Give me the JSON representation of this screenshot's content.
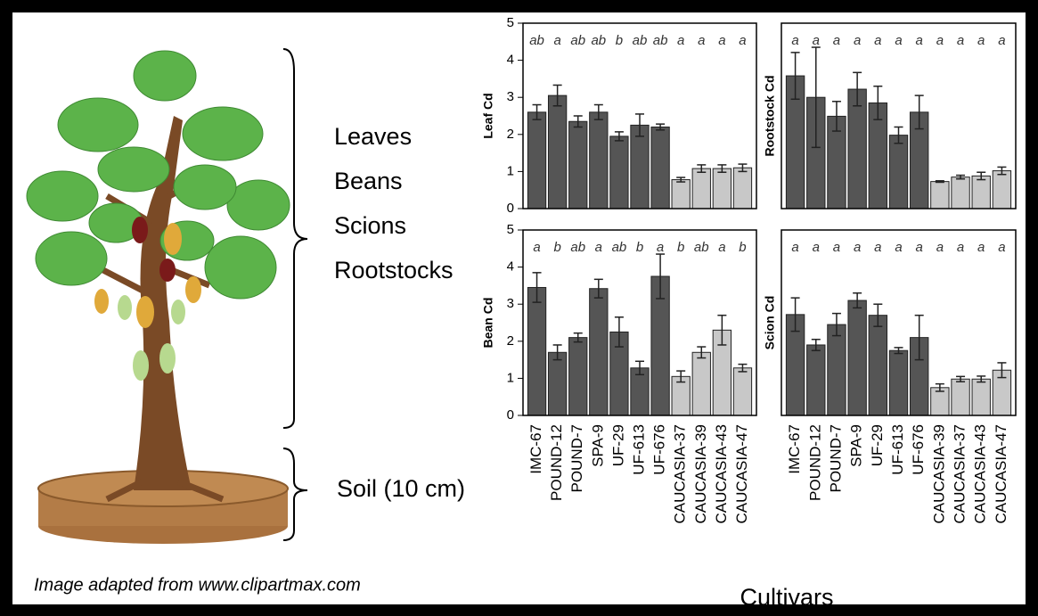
{
  "chart_data": [
    {
      "type": "bar",
      "y_label": "Leaf Cd",
      "values": [
        2.6,
        3.05,
        2.35,
        2.6,
        1.95,
        2.25,
        2.2,
        0.78,
        1.08,
        1.08,
        1.1
      ],
      "errors": [
        0.2,
        0.28,
        0.15,
        0.2,
        0.12,
        0.3,
        0.08,
        0.06,
        0.1,
        0.1,
        0.1
      ],
      "letters": [
        "ab",
        "a",
        "ab",
        "ab",
        "b",
        "ab",
        "ab",
        "a",
        "a",
        "a",
        "a"
      ],
      "colors": [
        "#555555",
        "#555555",
        "#555555",
        "#555555",
        "#555555",
        "#555555",
        "#555555",
        "#c8c8c8",
        "#c8c8c8",
        "#c8c8c8",
        "#c8c8c8"
      ],
      "ylim": [
        0,
        5
      ],
      "yticks": [
        0,
        1,
        2,
        3,
        4,
        5
      ]
    },
    {
      "type": "bar",
      "y_label": "Rootstock Cd",
      "values": [
        3.58,
        3.0,
        2.49,
        3.22,
        2.85,
        1.98,
        2.6,
        0.73,
        0.85,
        0.88,
        1.02
      ],
      "errors": [
        0.63,
        1.35,
        0.4,
        0.45,
        0.45,
        0.22,
        0.45,
        0.02,
        0.05,
        0.1,
        0.1
      ],
      "letters": [
        "a",
        "a",
        "a",
        "a",
        "a",
        "a",
        "a",
        "a",
        "a",
        "a",
        "a"
      ],
      "colors": [
        "#555555",
        "#555555",
        "#555555",
        "#555555",
        "#555555",
        "#555555",
        "#555555",
        "#c8c8c8",
        "#c8c8c8",
        "#c8c8c8",
        "#c8c8c8"
      ],
      "ylim": [
        0,
        5
      ]
    },
    {
      "type": "bar",
      "y_label": "Bean Cd",
      "categories": [
        "IMC-67",
        "POUND-12",
        "POUND-7",
        "SPA-9",
        "UF-29",
        "UF-613",
        "UF-676",
        "CAUCASIA-37",
        "CAUCASIA-39",
        "CAUCASIA-43",
        "CAUCASIA-47"
      ],
      "values": [
        3.45,
        1.7,
        2.1,
        3.42,
        2.25,
        1.28,
        3.75,
        1.05,
        1.7,
        2.3,
        1.28
      ],
      "errors": [
        0.4,
        0.2,
        0.12,
        0.25,
        0.4,
        0.18,
        0.6,
        0.15,
        0.15,
        0.4,
        0.1
      ],
      "letters": [
        "a",
        "b",
        "ab",
        "a",
        "ab",
        "b",
        "a",
        "b",
        "ab",
        "a",
        "b"
      ],
      "colors": [
        "#555555",
        "#555555",
        "#555555",
        "#555555",
        "#555555",
        "#555555",
        "#555555",
        "#c8c8c8",
        "#c8c8c8",
        "#c8c8c8",
        "#c8c8c8"
      ],
      "ylim": [
        0,
        5
      ],
      "yticks": [
        0,
        1,
        2,
        3,
        4,
        5
      ]
    },
    {
      "type": "bar",
      "y_label": "Scion Cd",
      "categories": [
        "IMC-67",
        "POUND-12",
        "POUND-7",
        "SPA-9",
        "UF-29",
        "UF-613",
        "UF-676",
        "CAUCASIA-39",
        "CAUCASIA-37",
        "CAUCASIA-43",
        "CAUCASIA-47"
      ],
      "values": [
        2.72,
        1.9,
        2.45,
        3.1,
        2.7,
        1.75,
        2.1,
        0.75,
        0.98,
        0.98,
        1.22
      ],
      "errors": [
        0.45,
        0.15,
        0.3,
        0.2,
        0.3,
        0.08,
        0.6,
        0.1,
        0.07,
        0.08,
        0.2
      ],
      "letters": [
        "a",
        "a",
        "a",
        "a",
        "a",
        "a",
        "a",
        "a",
        "a",
        "a",
        "a"
      ],
      "colors": [
        "#555555",
        "#555555",
        "#555555",
        "#555555",
        "#555555",
        "#555555",
        "#555555",
        "#c8c8c8",
        "#c8c8c8",
        "#c8c8c8",
        "#c8c8c8"
      ],
      "ylim": [
        0,
        5
      ]
    }
  ],
  "x_label": "Cultivars",
  "tissues": [
    "Leaves",
    "Beans",
    "Scions",
    "Rootstocks"
  ],
  "soil_label": "Soil (10 cm)",
  "caption": "Image adapted from www.clipartmax.com"
}
